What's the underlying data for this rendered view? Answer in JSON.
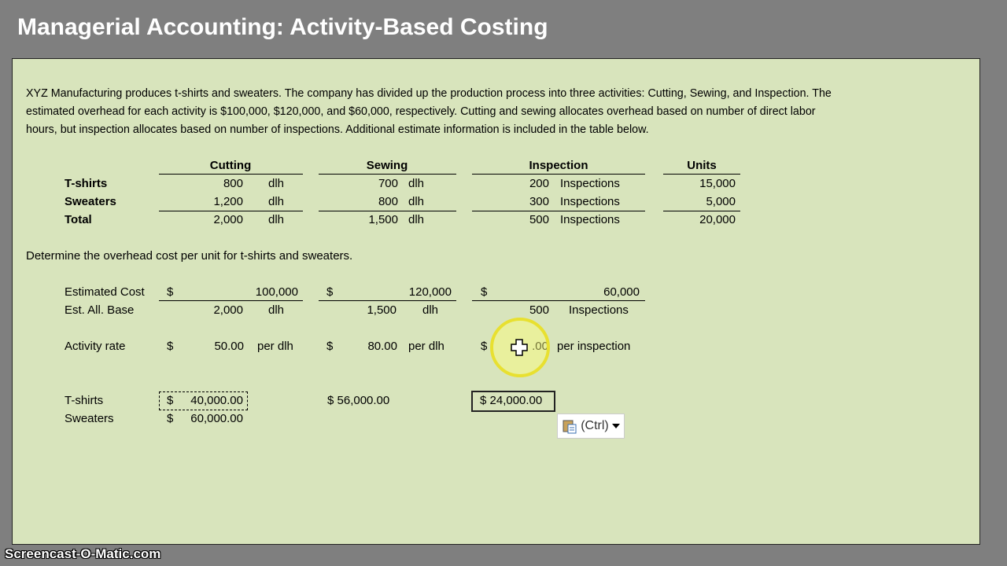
{
  "header": {
    "title": "Managerial Accounting: Activity-Based Costing"
  },
  "intro": [
    "XYZ Manufacturing produces t-shirts and sweaters. The company has divided up the production process into three activities: Cutting, Sewing, and Inspection. The",
    "estimated overhead for each activity is $100,000, $120,000, and $60,000, respectively. Cutting and sewing allocates overhead based on number of direct labor",
    "hours, but inspection allocates based on number of inspections. Additional estimate information is included in the table below."
  ],
  "table": {
    "columns": [
      "Cutting",
      "Sewing",
      "Inspection",
      "Units"
    ],
    "rows": [
      {
        "label": "T-shirts",
        "cells": [
          "800",
          "dlh",
          "700",
          "dlh",
          "200",
          "Inspections",
          "15,000"
        ]
      },
      {
        "label": "Sweaters",
        "cells": [
          "1,200",
          "dlh",
          "800",
          "dlh",
          "300",
          "Inspections",
          "5,000"
        ]
      },
      {
        "label": "Total",
        "cells": [
          "2,000",
          "dlh",
          "1,500",
          "dlh",
          "500",
          "Inspections",
          "20,000"
        ]
      }
    ]
  },
  "question": "Determine the overhead cost per unit for t-shirts and sweaters.",
  "calc": {
    "rows": [
      {
        "label": "Estimated Cost",
        "cells": [
          "$",
          "100,000",
          "$",
          "120,000",
          "$",
          "60,000"
        ]
      },
      {
        "label": "Est. All. Base",
        "cells": [
          "2,000",
          "dlh",
          "1,500",
          "dlh",
          "500",
          "Inspections"
        ]
      },
      {
        "label": "Activity rate",
        "cells": [
          "$",
          "50.00",
          "per dlh",
          "$",
          "80.00",
          "per dlh",
          "$",
          ".00",
          "per inspection"
        ]
      }
    ]
  },
  "results": {
    "rows": [
      {
        "label": "T-shirts",
        "cells": [
          "$",
          "40,000.00",
          "$ 56,000.00",
          "$ 24,000.00"
        ]
      },
      {
        "label": "Sweaters",
        "cells": [
          "$",
          "60,000.00"
        ]
      }
    ]
  },
  "paste_button": "(Ctrl)",
  "watermark": "Screencast-O-Matic.com"
}
